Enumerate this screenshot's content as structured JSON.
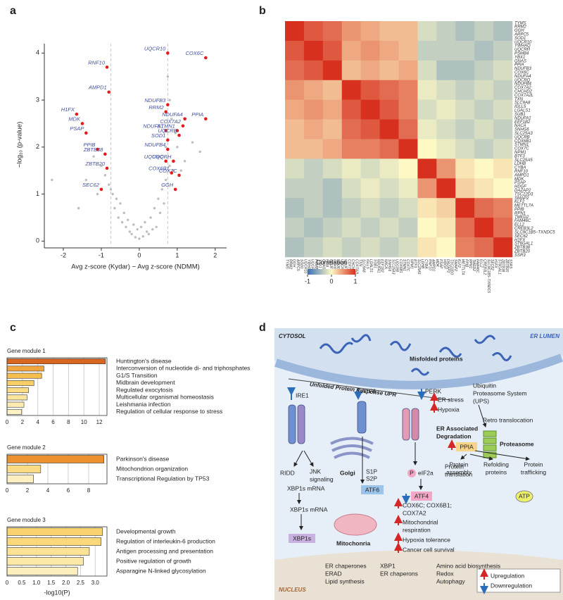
{
  "panel_labels": [
    "a",
    "b",
    "c",
    "d"
  ],
  "chart_data": [
    {
      "type": "scatter",
      "xlabel": "Avg z-score (Kydar) − Avg z-score (NDMM)",
      "ylabel": "−log₁₀ (p-value)",
      "xlim": [
        -2.5,
        2.3
      ],
      "ylim": [
        -0.1,
        4.2
      ],
      "xticks": [
        -2,
        -1,
        0,
        1,
        2
      ],
      "yticks": [
        0,
        1,
        2,
        3,
        4
      ],
      "threshold_lines": [
        -0.75,
        0.75
      ],
      "color": "#bdbdbd",
      "x": [
        0,
        0.1,
        -0.1,
        0.2,
        -0.2,
        0.05,
        -0.05,
        0.15,
        -0.15,
        0.3,
        -0.3,
        0.4,
        -0.4,
        0.5,
        -0.5,
        0.25,
        -0.25,
        0.6,
        -0.6,
        0.7,
        -0.7,
        0.8,
        -0.8,
        0.9,
        -0.9,
        1.0,
        -1.0,
        1.2,
        -1.2,
        1.4,
        -1.4,
        -2.3,
        -1.6,
        1.6,
        0.45,
        -0.45,
        0.35,
        -0.35,
        0.55,
        -0.55,
        0.65,
        -0.65,
        0.75,
        0.85,
        -0.75,
        1.1,
        -1.1,
        0.95,
        0.7,
        0.8
      ],
      "values": [
        0.05,
        0.1,
        0.08,
        0.2,
        0.15,
        0.3,
        0.25,
        0.4,
        0.35,
        0.5,
        0.45,
        0.7,
        0.6,
        0.9,
        0.8,
        0.15,
        0.2,
        1.1,
        0.9,
        1.3,
        1.0,
        1.6,
        1.2,
        1.5,
        1.4,
        2.0,
        1.6,
        1.7,
        1.8,
        2.1,
        1.3,
        1.3,
        0.7,
        1.9,
        0.3,
        0.4,
        0.25,
        0.3,
        0.6,
        0.5,
        0.8,
        0.7,
        3.5,
        2.6,
        1.1,
        1.5,
        1.0,
        2.3,
        2.0,
        3.0
      ],
      "genes": {
        "color": "#e41a1c",
        "label_color": "#3f4f9f",
        "labels": [
          "RNF10",
          "AMPD1",
          "H1FX",
          "MDK",
          "PSAP",
          "PPIB",
          "ZBTB38",
          "ZBTB20",
          "SEC62",
          "UQCR10",
          "COX6C",
          "NDUFB3",
          "RRM2",
          "NDUFA4",
          "PPIA",
          "COX7A2",
          "NDUFA1",
          "STMN1",
          "UQCRB",
          "SOD1",
          "NDUFB4",
          "UQCRQ",
          "UQCRH",
          "COX6B1",
          "COX7C",
          "GGH"
        ],
        "x": [
          -0.85,
          -0.8,
          -1.65,
          -1.5,
          -1.4,
          -1.1,
          -0.9,
          -0.85,
          -1.0,
          0.75,
          1.75,
          0.75,
          0.7,
          1.2,
          1.75,
          1.15,
          0.7,
          1.0,
          1.05,
          0.75,
          0.75,
          0.7,
          0.9,
          0.85,
          1.05,
          0.95
        ],
        "values": [
          3.7,
          3.17,
          2.7,
          2.5,
          2.3,
          1.95,
          1.85,
          1.55,
          1.1,
          4.0,
          3.9,
          2.9,
          2.75,
          2.6,
          2.6,
          2.45,
          2.35,
          2.35,
          2.25,
          2.15,
          1.95,
          1.7,
          1.7,
          1.45,
          1.4,
          1.1
        ]
      }
    },
    {
      "type": "heatmap",
      "colorbar_title": "Correlation",
      "colorscale": [
        "#3b6fb6",
        "#fdf8c4",
        "#d7301f"
      ],
      "clim": [
        -1,
        1
      ],
      "cticks": [
        -1,
        0,
        1
      ],
      "gene_labels": [
        "TYMS",
        "RRM2",
        "GGH",
        "ARPC5",
        "SOD1",
        "UQCR10",
        "YWHAQ",
        "UQCRH",
        "PSMB4",
        "YBX1",
        "GNAS",
        "PPIA",
        "NDUFB3",
        "COX6C",
        "NDUFA4",
        "UQCRQ",
        "NDUFB4",
        "COX7A2",
        "CHCHD2",
        "COX7A2L",
        "TXN",
        "SLC9A8",
        "IGLL5",
        "LGALS1",
        "SUB1",
        "NDUFA1",
        "EEF1B2",
        "NACA",
        "SNHG6",
        "SLC25A3",
        "UQCRB",
        "COX6B1",
        "STMN1",
        "COX7C",
        "NPM1",
        "BTF3",
        "SLC25A5",
        "LDHB",
        "CYBA",
        "RNF10",
        "AMPD1",
        "MDK",
        "PSAP",
        "HDGF",
        "DAZAP2",
        "TSC22D3",
        "SMAP2",
        "KLF2",
        "METTL7A",
        "PPIB",
        "RPN1",
        "TMED2",
        "FAM46C",
        "ELL2",
        "CREB3L2",
        "SLC9C1B5−TXNDC5",
        "SEC62",
        "H1FX",
        "ST6GAL1",
        "ZBTB38",
        "ZBTB20",
        "SSR3"
      ],
      "matrix": [
        [
          1,
          0.8,
          0.7,
          0.5,
          0.4,
          0.3,
          0.3,
          -0.2,
          -0.3,
          -0.4,
          -0.3,
          -0.4
        ],
        [
          0.8,
          1,
          0.8,
          0.4,
          0.5,
          0.4,
          0.3,
          -0.3,
          -0.3,
          -0.3,
          -0.4,
          -0.3
        ],
        [
          0.7,
          0.8,
          1,
          0.3,
          0.4,
          0.3,
          0.4,
          -0.2,
          -0.4,
          -0.4,
          -0.3,
          -0.2
        ],
        [
          0.5,
          0.4,
          0.3,
          1,
          0.8,
          0.7,
          0.6,
          -0.1,
          -0.2,
          -0.3,
          -0.2,
          -0.3
        ],
        [
          0.4,
          0.5,
          0.4,
          0.8,
          1,
          0.8,
          0.6,
          -0.2,
          -0.1,
          -0.2,
          -0.3,
          -0.2
        ],
        [
          0.3,
          0.4,
          0.3,
          0.7,
          0.8,
          1,
          0.7,
          -0.1,
          -0.2,
          -0.3,
          -0.2,
          -0.3
        ],
        [
          0.3,
          0.3,
          0.4,
          0.6,
          0.6,
          0.7,
          1,
          0,
          -0.1,
          -0.2,
          -0.3,
          -0.2
        ],
        [
          -0.2,
          -0.3,
          -0.2,
          -0.1,
          -0.2,
          -0.1,
          0,
          1,
          0.5,
          0.1,
          0,
          0.1
        ],
        [
          -0.3,
          -0.3,
          -0.4,
          -0.2,
          -0.1,
          -0.2,
          -0.1,
          0.5,
          1,
          0.2,
          0.1,
          0
        ],
        [
          -0.4,
          -0.3,
          -0.4,
          -0.3,
          -0.2,
          -0.3,
          -0.2,
          0.1,
          0.2,
          1,
          0.7,
          0.6
        ],
        [
          -0.3,
          -0.4,
          -0.3,
          -0.2,
          -0.3,
          -0.2,
          -0.3,
          0,
          0.1,
          0.7,
          1,
          0.7
        ],
        [
          -0.4,
          -0.3,
          -0.2,
          -0.3,
          -0.2,
          -0.3,
          -0.2,
          0.1,
          0,
          0.6,
          0.7,
          1
        ]
      ]
    },
    {
      "type": "hbar",
      "title": "Gene module 1",
      "xlim": [
        0,
        13
      ],
      "xticks": [
        0,
        2,
        4,
        6,
        8,
        10,
        12
      ],
      "categories": [
        "Huntington's disease",
        "Interconversion of nucleotide di- and triphosphates",
        "G1/S Transition",
        "Midbrain development",
        "Regulated exocytosis",
        "Multicellular organismal homeostasis",
        "Leishmania infection",
        "Regulation of cellular response to stress"
      ],
      "values": [
        12.8,
        4.8,
        4.5,
        3.5,
        2.8,
        2.6,
        2.2,
        1.9
      ],
      "colors": [
        "#d9661f",
        "#f0a63c",
        "#f5be4d",
        "#f8cf67",
        "#fadc84",
        "#fbe59c",
        "#fcecb2",
        "#fdf2c6"
      ]
    },
    {
      "type": "hbar",
      "title": "Gene module 2",
      "xlim": [
        0,
        9.8
      ],
      "xticks": [
        0,
        2,
        4,
        6,
        8
      ],
      "categories": [
        "Parkinson's disease",
        "Mitochondrion organization",
        "Transcriptional Regulation by TP53"
      ],
      "values": [
        9.5,
        3.3,
        2.6
      ],
      "colors": [
        "#ec8f2e",
        "#fadc84",
        "#fdf0c0"
      ]
    },
    {
      "type": "hbar",
      "title": "Gene module 3",
      "xlabel": "-log10(P)",
      "xlim": [
        0,
        3.4
      ],
      "xticks": [
        0,
        0.5,
        {
          "value": 1,
          "label": "1.0"
        },
        1.5,
        {
          "value": 2,
          "label": "2.0"
        },
        2.5,
        {
          "value": 3,
          "label": "3.0"
        }
      ],
      "categories": [
        "Developmental growth",
        "Regulation of interleukin-6 production",
        "Antigen processing and presentation",
        "Positive regulation of growth",
        "Asparagine N-linked glycosylation"
      ],
      "values": [
        3.25,
        3.2,
        2.8,
        2.6,
        2.4
      ],
      "colors": [
        "#f9d46e",
        "#fad97a",
        "#fbe295",
        "#fce9a8",
        "#fdefbc"
      ]
    }
  ],
  "diagram": {
    "cytosol": "CYTOSOL",
    "er_lumen": "ER LUMEN",
    "misfolded": "Misfolded proteins",
    "upr": "Unfolded Protein Response UPR",
    "ire1": "IRE1",
    "atf6": "ATF6",
    "perk": "PERK",
    "er_stress": "ER stress",
    "hypoxia": "Hypoxia",
    "ups": [
      "Ubiquitin",
      "Proteasome System",
      "(UPS)"
    ],
    "retro": "Retro translocation",
    "erad": [
      "ER Associated",
      "Degradation"
    ],
    "proteasome": "Proteasome",
    "ridd": "RIDD",
    "jnk": [
      "JNK",
      "signaling"
    ],
    "xbp1s_mrna": [
      "XBP1s mRNA",
      "XBP1s mRNA"
    ],
    "xbp1s": "XBP1s",
    "golgi": "Golgi",
    "s1p": "S1P",
    "s2p": "S2P",
    "atf6_cleaved": "ATF6",
    "p": "P",
    "eif2a": "eIF2a",
    "translation": [
      "Protein",
      "translation"
    ],
    "atf4": "ATF4",
    "ppia": "PPIA",
    "assembly": [
      "Protein",
      "assembly"
    ],
    "refolding": [
      "Refolding",
      "proteins"
    ],
    "trafficking": [
      "Protein",
      "trafficking"
    ],
    "atp": "ATP",
    "mito": "Mitochonria",
    "cox": [
      "COX6C; COX6B1;",
      "COX7A2"
    ],
    "respiration": [
      "Mitochondrial",
      "respiration"
    ],
    "hypoxia_tol": "Hypoxia tolerance",
    "survival": "Cancer cell survival",
    "nucleus": "NUCLEUS",
    "targets_1": [
      "ER chaperones",
      "ERAD",
      "Lipid synthesis"
    ],
    "targets_2": [
      "XBP1",
      "ER chaperons"
    ],
    "targets_3": [
      "Amino acid biosynthesis",
      "Redox",
      "Autophagy"
    ],
    "legend": [
      "Upregulation",
      "Downregulation"
    ]
  }
}
